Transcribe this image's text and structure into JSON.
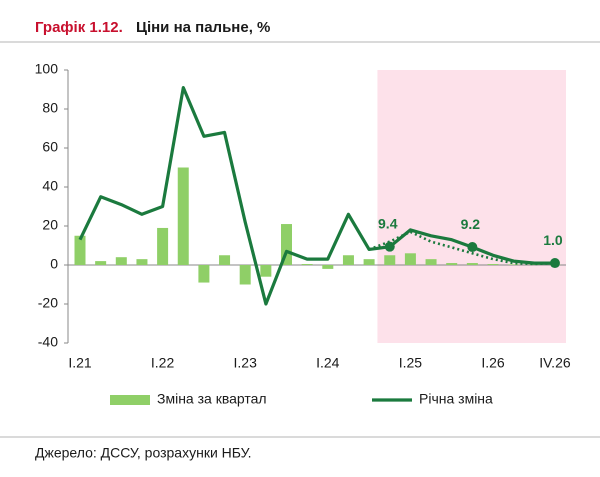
{
  "chart_data": {
    "type": "bar_line",
    "title_label": "Графік 1.12.",
    "title": "Ціни на пальне, %",
    "source": "Джерело: ДССУ, розрахунки НБУ.",
    "categories": [
      "I.21",
      null,
      null,
      null,
      "I.22",
      null,
      null,
      null,
      "I.23",
      null,
      null,
      null,
      "I.24",
      null,
      null,
      null,
      "I.25",
      null,
      null,
      null,
      "I.26",
      null,
      null,
      "IV.26"
    ],
    "shaded_from": 15,
    "shade_color": "#fde1ea",
    "series": [
      {
        "name": "Зміна за квартал",
        "kind": "bar",
        "color": "#8fcf67",
        "values": [
          15,
          2,
          4,
          3,
          19,
          50,
          -9,
          5,
          -10,
          -6,
          21,
          0.5,
          -2,
          5,
          3,
          5,
          6,
          3,
          1,
          1,
          0.5,
          0.3,
          0.2,
          0.2
        ]
      },
      {
        "name": "Річна зміна",
        "kind": "line",
        "color": "#1b7a3e",
        "values": [
          13,
          35,
          31,
          26,
          30,
          91,
          66,
          68,
          22,
          -20,
          7,
          3,
          3,
          26,
          8,
          9.4,
          18,
          15,
          13,
          9.2,
          5,
          2,
          1,
          1
        ],
        "value_labels": [
          null,
          null,
          null,
          null,
          null,
          null,
          null,
          null,
          null,
          null,
          null,
          null,
          null,
          null,
          null,
          "9.4",
          null,
          null,
          null,
          "9.2",
          null,
          null,
          null,
          "1.0"
        ]
      },
      {
        "kind": "dotted",
        "color": "#1b7a3e",
        "values": [
          null,
          null,
          null,
          null,
          null,
          null,
          null,
          null,
          null,
          null,
          null,
          null,
          null,
          null,
          8,
          12,
          17,
          12,
          9,
          6,
          3,
          1,
          0.5,
          1
        ]
      }
    ],
    "ylim": [
      -40,
      100
    ],
    "yticks": [
      100,
      80,
      60,
      40,
      20,
      0,
      -20,
      -40
    ]
  }
}
